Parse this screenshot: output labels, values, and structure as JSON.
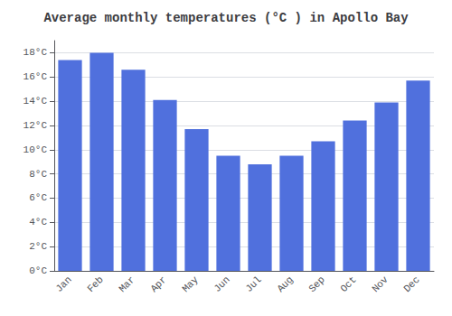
{
  "chart_data": {
    "type": "bar",
    "title": "Average monthly temperatures (°C ) in Apollo Bay",
    "categories": [
      "Jan",
      "Feb",
      "Mar",
      "Apr",
      "May",
      "Jun",
      "Jul",
      "Aug",
      "Sep",
      "Oct",
      "Nov",
      "Dec"
    ],
    "values": [
      17.4,
      18.0,
      16.6,
      14.1,
      11.7,
      9.5,
      8.8,
      9.5,
      10.7,
      12.4,
      13.9,
      15.7
    ],
    "ylim": [
      0,
      19
    ],
    "yticks": [
      {
        "value": 0,
        "label": "0°C"
      },
      {
        "value": 2,
        "label": "2°C"
      },
      {
        "value": 4,
        "label": "4°C"
      },
      {
        "value": 6,
        "label": "6°C"
      },
      {
        "value": 8,
        "label": "8°C"
      },
      {
        "value": 10,
        "label": "10°C"
      },
      {
        "value": 12,
        "label": "12°C"
      },
      {
        "value": 14,
        "label": "14°C"
      },
      {
        "value": 16,
        "label": "16°C"
      },
      {
        "value": 18,
        "label": "18°C"
      }
    ],
    "grid": true
  }
}
